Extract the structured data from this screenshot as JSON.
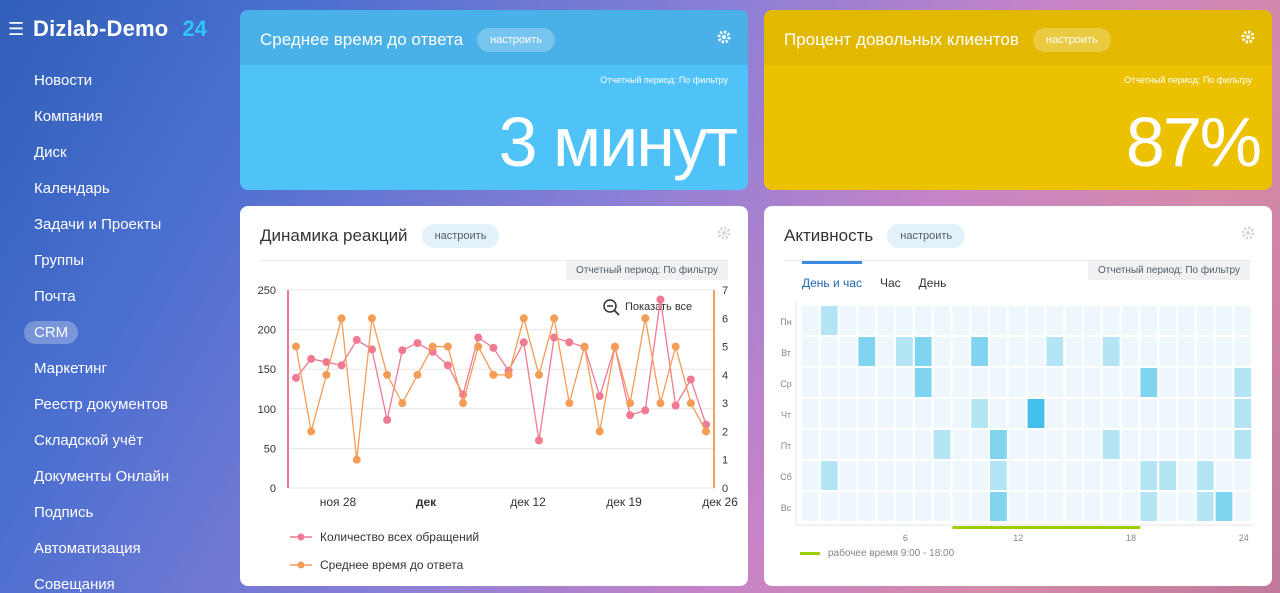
{
  "app": {
    "name": "Dizlab-Demo",
    "suffix": "24"
  },
  "sidebar": {
    "items": [
      {
        "label": "Новости"
      },
      {
        "label": "Компания"
      },
      {
        "label": "Диск"
      },
      {
        "label": "Календарь"
      },
      {
        "label": "Задачи и Проекты"
      },
      {
        "label": "Группы"
      },
      {
        "label": "Почта"
      },
      {
        "label": "CRM",
        "active": true
      },
      {
        "label": "Маркетинг"
      },
      {
        "label": "Реестр документов"
      },
      {
        "label": "Складской учёт"
      },
      {
        "label": "Документы Онлайн"
      },
      {
        "label": "Подпись"
      },
      {
        "label": "Автоматизация"
      },
      {
        "label": "Совещания"
      }
    ]
  },
  "kpi_response": {
    "title": "Среднее время до ответа",
    "configure": "настроить",
    "period": "Отчетный период: По фильтру",
    "value": "3 минут",
    "color": "#4fc3f7"
  },
  "kpi_satisfaction": {
    "title": "Процент довольных клиентов",
    "configure": "настроить",
    "period": "Отчетный период: По фильтру",
    "value": "87%",
    "color": "#ecc200"
  },
  "dynamics": {
    "title": "Динамика реакций",
    "configure": "настроить",
    "period": "Отчетный период: По фильтру",
    "show_all": "Показать все",
    "legend1": "Количество всех обращений",
    "legend2": "Среднее время до ответа"
  },
  "activity": {
    "title": "Активность",
    "configure": "настроить",
    "period": "Отчетный период: По фильтру",
    "tabs": [
      "День и час",
      "Час",
      "День"
    ],
    "active_tab": 0,
    "days": [
      "Пн",
      "Вт",
      "Ср",
      "Чт",
      "Пт",
      "Сб",
      "Вс"
    ],
    "hour_ticks": [
      "6",
      "12",
      "18",
      "24"
    ],
    "work_legend": "рабочее время 9:00 - 18:00",
    "levels": [
      [
        0,
        1,
        0,
        0,
        0,
        0,
        0,
        0,
        0,
        0,
        0,
        0,
        0,
        0,
        0,
        0,
        0,
        0,
        0,
        0,
        0,
        0,
        0,
        0
      ],
      [
        0,
        0,
        0,
        2,
        0,
        1,
        2,
        0,
        0,
        2,
        0,
        0,
        0,
        1,
        0,
        0,
        1,
        0,
        0,
        0,
        0,
        0,
        0,
        0
      ],
      [
        0,
        0,
        0,
        0,
        0,
        0,
        2,
        0,
        0,
        0,
        0,
        0,
        0,
        0,
        0,
        0,
        0,
        0,
        2,
        0,
        0,
        0,
        0,
        1
      ],
      [
        0,
        0,
        0,
        0,
        0,
        0,
        0,
        0,
        0,
        1,
        0,
        0,
        3,
        0,
        0,
        0,
        0,
        0,
        0,
        0,
        0,
        0,
        0,
        1
      ],
      [
        0,
        0,
        0,
        0,
        0,
        0,
        0,
        1,
        0,
        0,
        2,
        0,
        0,
        0,
        0,
        0,
        1,
        0,
        0,
        0,
        0,
        0,
        0,
        1
      ],
      [
        0,
        1,
        0,
        0,
        0,
        0,
        0,
        0,
        0,
        0,
        1,
        0,
        0,
        0,
        0,
        0,
        0,
        0,
        1,
        1,
        0,
        1,
        0,
        0
      ],
      [
        0,
        0,
        0,
        0,
        0,
        0,
        0,
        0,
        0,
        0,
        2,
        0,
        0,
        0,
        0,
        0,
        0,
        0,
        1,
        0,
        0,
        1,
        2,
        0
      ]
    ]
  },
  "chart_data": {
    "type": "line",
    "x_ticks": [
      "ноя 28",
      "дек",
      "дек 12",
      "дек 19",
      "дек 26"
    ],
    "ylim_left": [
      0,
      250
    ],
    "yticks_left": [
      "250",
      "200",
      "150",
      "100",
      "50",
      "0"
    ],
    "ylim_right": [
      0,
      7
    ],
    "yticks_right": [
      "7",
      "6",
      "5",
      "4",
      "3",
      "2",
      "1",
      "0"
    ],
    "grid": true,
    "legend_position": "bottom",
    "series": [
      {
        "name": "Количество всех обращений",
        "axis": "left",
        "color": "#f07a92",
        "values": [
          139,
          163,
          159,
          155,
          187,
          175,
          86,
          174,
          183,
          172,
          155,
          118,
          190,
          177,
          148,
          184,
          60,
          190,
          184,
          178,
          116,
          178,
          92,
          98,
          238,
          104,
          137,
          80
        ]
      },
      {
        "name": "Среднее время до ответа",
        "axis": "right",
        "color": "#f59c57",
        "values": [
          5,
          2,
          4,
          6,
          1,
          6,
          4,
          3,
          4,
          5,
          5,
          3,
          5,
          4,
          4,
          6,
          4,
          6,
          3,
          5,
          2,
          5,
          3,
          6,
          3,
          5,
          3,
          2
        ]
      }
    ]
  }
}
